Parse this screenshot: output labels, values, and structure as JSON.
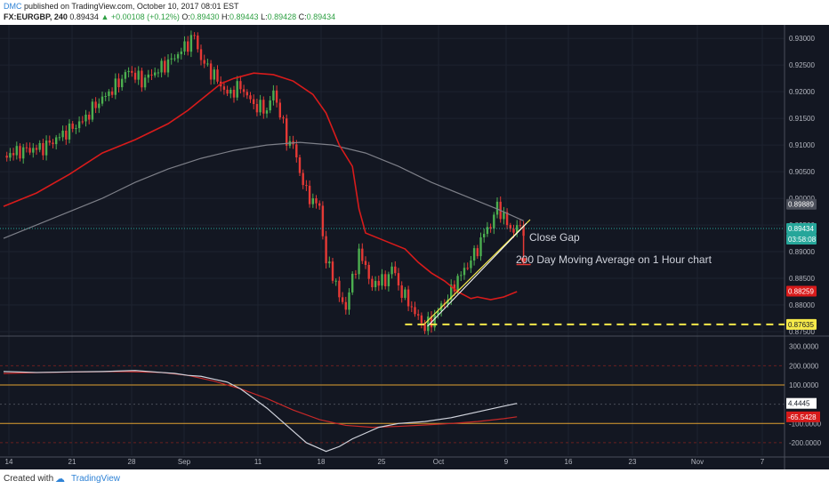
{
  "header": {
    "author": "DMC",
    "published": "published on TradingView.com, October 10, 2017 08:01 EST",
    "symbol": "FX:EURGBP, 240",
    "last": "0.89434",
    "change": "▲ +0.00108 (+0.12%)",
    "open_label": "O:",
    "open": "0.89430",
    "high_label": "H:",
    "high": "0.89443",
    "low_label": "L:",
    "low": "0.89428",
    "close_label": "C:",
    "close": "0.89434"
  },
  "footer": {
    "created_with": "Created with",
    "brand": "TradingView"
  },
  "colors": {
    "background": "#131722",
    "up": "#4caf50",
    "down": "#e53935",
    "ma_red": "#d81b1b",
    "ma_grey": "#7d7f88",
    "trend": "#f5e94a",
    "support": "#f5e94a",
    "price_tag": "#26a69a"
  },
  "chart_data": [
    {
      "type": "candlestick",
      "symbol": "FX:EURGBP",
      "timeframe": "240",
      "x_ticks": [
        "14",
        "21",
        "28",
        "Sep",
        "11",
        "18",
        "25",
        "Oct",
        "9",
        "16",
        "23",
        "Nov",
        "7"
      ],
      "y_ticks": [
        "0.93000",
        "0.92500",
        "0.92000",
        "0.91500",
        "0.91000",
        "0.90500",
        "0.90000",
        "0.89500",
        "0.89000",
        "0.88500",
        "0.88000",
        "0.87500"
      ],
      "ylim": [
        0.8745,
        0.9322
      ],
      "price_close_path": [
        [
          0,
          0.908
        ],
        [
          3,
          0.909
        ],
        [
          6,
          0.9095
        ],
        [
          9,
          0.912
        ],
        [
          12,
          0.9145
        ],
        [
          14,
          0.9175
        ],
        [
          17,
          0.921
        ],
        [
          19,
          0.924
        ],
        [
          21,
          0.922
        ],
        [
          24,
          0.9245
        ],
        [
          26,
          0.9265
        ],
        [
          28,
          0.929
        ],
        [
          29,
          0.9305
        ],
        [
          30,
          0.926
        ],
        [
          32,
          0.923
        ],
        [
          34,
          0.9195
        ],
        [
          36,
          0.921
        ],
        [
          38,
          0.9175
        ],
        [
          40,
          0.9165
        ],
        [
          41,
          0.92
        ],
        [
          42,
          0.916
        ],
        [
          43,
          0.911
        ],
        [
          44,
          0.91
        ],
        [
          45,
          0.905
        ],
        [
          46,
          0.901
        ],
        [
          47,
          0.8995
        ],
        [
          48,
          0.8985
        ],
        [
          49,
          0.888
        ],
        [
          50,
          0.886
        ],
        [
          51,
          0.8815
        ],
        [
          52,
          0.8795
        ],
        [
          53,
          0.885
        ],
        [
          54,
          0.8895
        ],
        [
          55,
          0.8875
        ],
        [
          56,
          0.883
        ],
        [
          57,
          0.885
        ],
        [
          58,
          0.884
        ],
        [
          59,
          0.8875
        ],
        [
          60,
          0.8835
        ],
        [
          61,
          0.8815
        ],
        [
          62,
          0.8795
        ],
        [
          63,
          0.8775
        ],
        [
          64,
          0.876
        ],
        [
          65,
          0.8768
        ],
        [
          66,
          0.879
        ],
        [
          67,
          0.8805
        ],
        [
          68,
          0.8825
        ],
        [
          69,
          0.885
        ],
        [
          70,
          0.8865
        ],
        [
          71,
          0.8885
        ],
        [
          72,
          0.8905
        ],
        [
          73,
          0.8935
        ],
        [
          74,
          0.895
        ],
        [
          75,
          0.8985
        ],
        [
          76,
          0.8965
        ],
        [
          77,
          0.894
        ],
        [
          78,
          0.8945
        ],
        [
          79,
          0.8943
        ]
      ],
      "ma_red_path": [
        [
          0,
          0.8985
        ],
        [
          5,
          0.901
        ],
        [
          10,
          0.9045
        ],
        [
          15,
          0.9085
        ],
        [
          20,
          0.911
        ],
        [
          25,
          0.914
        ],
        [
          28,
          0.9165
        ],
        [
          31,
          0.9195
        ],
        [
          33,
          0.9215
        ],
        [
          35,
          0.9225
        ],
        [
          38,
          0.9235
        ],
        [
          41,
          0.9232
        ],
        [
          44,
          0.922
        ],
        [
          47,
          0.9195
        ],
        [
          49,
          0.916
        ],
        [
          51,
          0.91
        ],
        [
          53,
          0.906
        ],
        [
          54,
          0.898
        ],
        [
          55,
          0.8935
        ],
        [
          57,
          0.8925
        ],
        [
          59,
          0.8915
        ],
        [
          61,
          0.8905
        ],
        [
          63,
          0.888
        ],
        [
          65,
          0.886
        ],
        [
          67,
          0.8845
        ],
        [
          69,
          0.8825
        ],
        [
          71,
          0.8812
        ],
        [
          72,
          0.8815
        ],
        [
          74,
          0.881
        ],
        [
          76,
          0.8815
        ],
        [
          78,
          0.8825
        ]
      ],
      "ma_grey_path": [
        [
          0,
          0.8925
        ],
        [
          5,
          0.895
        ],
        [
          10,
          0.8975
        ],
        [
          15,
          0.9
        ],
        [
          20,
          0.903
        ],
        [
          25,
          0.9055
        ],
        [
          30,
          0.9075
        ],
        [
          35,
          0.909
        ],
        [
          40,
          0.91
        ],
        [
          45,
          0.9105
        ],
        [
          50,
          0.91
        ],
        [
          55,
          0.9085
        ],
        [
          60,
          0.906
        ],
        [
          65,
          0.903
        ],
        [
          70,
          0.9005
        ],
        [
          75,
          0.898
        ],
        [
          79,
          0.8958
        ]
      ],
      "price_labels": [
        "0.89889",
        "0.89434",
        "03:58:08",
        "0.88259",
        "0.87635"
      ],
      "support_level": 0.87635,
      "trendline": [
        [
          64,
          0.8765
        ],
        [
          80,
          0.896
        ]
      ],
      "annotations": [
        "Close Gap",
        "200 Day Moving Average on 1 Hour chart"
      ]
    },
    {
      "type": "line",
      "indicator_pane": true,
      "y_ticks": [
        "300.0000",
        "200.0000",
        "100.0000",
        "-100.0000",
        "-200.0000"
      ],
      "ylim": [
        -265,
        345
      ],
      "h_levels": [
        100,
        -100
      ],
      "series": [
        {
          "values": [
            [
              0,
              170
            ],
            [
              5,
              165
            ],
            [
              10,
              168
            ],
            [
              15,
              170
            ],
            [
              20,
              175
            ],
            [
              24,
              165
            ],
            [
              26,
              160
            ],
            [
              28,
              150
            ],
            [
              30,
              145
            ],
            [
              32,
              130
            ],
            [
              34,
              115
            ],
            [
              36,
              80
            ],
            [
              38,
              30
            ],
            [
              40,
              -20
            ],
            [
              42,
              -80
            ],
            [
              44,
              -140
            ],
            [
              46,
              -200
            ],
            [
              48,
              -230
            ],
            [
              49,
              -245
            ],
            [
              51,
              -220
            ],
            [
              53,
              -180
            ],
            [
              55,
              -150
            ],
            [
              57,
              -120
            ],
            [
              60,
              -100
            ],
            [
              64,
              -90
            ],
            [
              68,
              -70
            ],
            [
              72,
              -40
            ],
            [
              76,
              -10
            ],
            [
              78,
              4.4445
            ]
          ]
        },
        {
          "values": [
            [
              0,
              160
            ],
            [
              6,
              165
            ],
            [
              12,
              168
            ],
            [
              18,
              170
            ],
            [
              24,
              165
            ],
            [
              28,
              150
            ],
            [
              32,
              120
            ],
            [
              36,
              80
            ],
            [
              40,
              30
            ],
            [
              44,
              -30
            ],
            [
              48,
              -80
            ],
            [
              52,
              -110
            ],
            [
              56,
              -120
            ],
            [
              60,
              -115
            ],
            [
              64,
              -108
            ],
            [
              68,
              -100
            ],
            [
              72,
              -90
            ],
            [
              76,
              -75
            ],
            [
              78,
              -65.5428
            ]
          ]
        }
      ],
      "value_labels": [
        "4.4445",
        "-65.5428"
      ]
    }
  ]
}
